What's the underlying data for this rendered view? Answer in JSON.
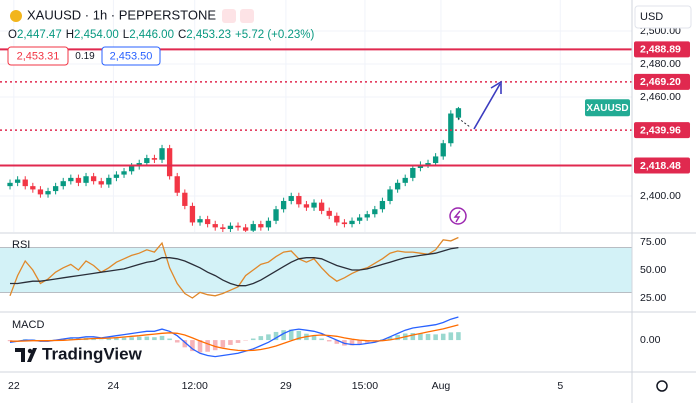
{
  "header": {
    "symbol": "XAUUSD · 1h · PEPPERSTONE",
    "ohlc": [
      {
        "label": "O",
        "value": "2,447.47"
      },
      {
        "label": "H",
        "value": "2,454.00"
      },
      {
        "label": "L",
        "value": "2,446.00"
      },
      {
        "label": "C",
        "value": "2,453.23"
      }
    ],
    "change": "+5.72 (+0.23%)",
    "bid": "2,453.31",
    "spread": "0.19",
    "ask": "2,453.50",
    "currency": "USD"
  },
  "logo": "TradingView",
  "chart_data": [
    {
      "type": "candlestick",
      "price_tag": "XAUUSD",
      "up_color": "#089981",
      "down_color": "#f23645",
      "grid": true,
      "open": [
        2406,
        2408,
        2410,
        2406,
        2404,
        2401,
        2403,
        2406,
        2409,
        2411,
        2408,
        2412,
        2409,
        2407,
        2411,
        2413,
        2415,
        2418,
        2420,
        2423,
        2422,
        2429,
        2412,
        2402,
        2394,
        2384,
        2386,
        2383,
        2381,
        2380,
        2382,
        2381,
        2379,
        2383,
        2381,
        2385,
        2392,
        2397,
        2400,
        2395,
        2393,
        2396,
        2391,
        2388,
        2384,
        2383,
        2385,
        2387,
        2389,
        2392,
        2397,
        2404,
        2408,
        2411,
        2417,
        2419,
        2420,
        2424,
        2432,
        2447.47
      ],
      "high": [
        2410,
        2412,
        2412,
        2408,
        2406,
        2405,
        2408,
        2411,
        2413,
        2413,
        2414,
        2414,
        2411,
        2413,
        2415,
        2417,
        2420,
        2422,
        2425,
        2425,
        2431,
        2431,
        2414,
        2404,
        2396,
        2388,
        2388,
        2385,
        2383,
        2384,
        2384,
        2383,
        2385,
        2385,
        2387,
        2394,
        2399,
        2402,
        2402,
        2397,
        2398,
        2398,
        2393,
        2390,
        2386,
        2387,
        2389,
        2391,
        2394,
        2399,
        2406,
        2410,
        2413,
        2419,
        2421,
        2422,
        2426,
        2434,
        2452,
        2454
      ],
      "low": [
        2404,
        2406,
        2404,
        2402,
        2399,
        2399,
        2401,
        2404,
        2407,
        2406,
        2406,
        2407,
        2405,
        2405,
        2409,
        2411,
        2413,
        2416,
        2418,
        2420,
        2420,
        2410,
        2400,
        2392,
        2382,
        2382,
        2381,
        2379,
        2378,
        2378,
        2379,
        2377,
        2377,
        2379,
        2379,
        2383,
        2390,
        2395,
        2393,
        2391,
        2391,
        2389,
        2386,
        2382,
        2381,
        2381,
        2383,
        2385,
        2387,
        2390,
        2395,
        2402,
        2406,
        2409,
        2415,
        2417,
        2418,
        2422,
        2430,
        2446
      ],
      "close": [
        2408,
        2410,
        2406,
        2404,
        2401,
        2403,
        2406,
        2409,
        2411,
        2408,
        2412,
        2409,
        2407,
        2411,
        2413,
        2415,
        2418,
        2420,
        2423,
        2422,
        2429,
        2412,
        2402,
        2394,
        2384,
        2386,
        2383,
        2381,
        2380,
        2382,
        2381,
        2379,
        2383,
        2381,
        2385,
        2392,
        2397,
        2400,
        2395,
        2393,
        2396,
        2391,
        2388,
        2384,
        2383,
        2385,
        2387,
        2389,
        2392,
        2397,
        2404,
        2408,
        2411,
        2417,
        2419,
        2420,
        2424,
        2432,
        2450,
        2453.23
      ],
      "ylim": [
        2378.2,
        2518.8
      ],
      "yticks": [
        {
          "value": 2400,
          "label": "2,400.00"
        },
        {
          "value": 2460,
          "label": "2,460.00"
        },
        {
          "value": 2480,
          "label": "2,480.00"
        },
        {
          "value": 2500,
          "label": "2,500.00"
        }
      ],
      "xlim": [
        -1.32,
        81.84
      ],
      "xticks": [
        {
          "value": 0.5,
          "label": "22"
        },
        {
          "value": 13.6,
          "label": "24"
        },
        {
          "value": 24.3,
          "label": "12:00"
        },
        {
          "value": 36.3,
          "label": "29"
        },
        {
          "value": 46.7,
          "label": "15:00"
        },
        {
          "value": 56.7,
          "label": "Aug"
        },
        {
          "value": 72.4,
          "label": "5"
        }
      ],
      "level_color": "#e0294f",
      "levels": [
        {
          "value": 2488.89,
          "label": "2,488.89",
          "style": "solid"
        },
        {
          "value": 2469.2,
          "label": "2,469.20",
          "style": "dotted"
        },
        {
          "value": 2439.96,
          "label": "2,439.96",
          "style": "dotted"
        },
        {
          "value": 2418.48,
          "label": "2,418.48",
          "style": "solid"
        }
      ]
    },
    {
      "type": "line",
      "title": "RSI",
      "ylim": [
        14.3,
        81.25
      ],
      "yticks": [
        {
          "value": 75,
          "label": "75.00"
        },
        {
          "value": 50,
          "label": "50.00"
        },
        {
          "value": 25,
          "label": "25.00"
        }
      ],
      "band": [
        30,
        70
      ],
      "band_color": "#d3f2f7",
      "series": [
        {
          "color": "#e0882a",
          "values": [
            27,
            45,
            58,
            50,
            38,
            42,
            48,
            52,
            55,
            50,
            58,
            54,
            48,
            52,
            57,
            60,
            63,
            65,
            68,
            66,
            74,
            52,
            38,
            29,
            25,
            30,
            28,
            27,
            29,
            32,
            35,
            45,
            50,
            55,
            57,
            62,
            66,
            67,
            60,
            57,
            60,
            52,
            45,
            40,
            43,
            47,
            50,
            52,
            56,
            60,
            65,
            67,
            66,
            66,
            65,
            64,
            68,
            77,
            76,
            79
          ]
        },
        {
          "color": "#2a2e39",
          "values": [
            38,
            38,
            39,
            40,
            40,
            41,
            42,
            43,
            44,
            45,
            46,
            47,
            48,
            49,
            50,
            51,
            53,
            55,
            57,
            58,
            61,
            61,
            60,
            58,
            55,
            52,
            48,
            45,
            41,
            38,
            36,
            36,
            38,
            41,
            45,
            49,
            53,
            57,
            60,
            61,
            61,
            60,
            57,
            54,
            52,
            50,
            50,
            51,
            53,
            55,
            57,
            59,
            61,
            62,
            63,
            64,
            65,
            67,
            69,
            70
          ]
        }
      ]
    },
    {
      "type": "line",
      "title": "MACD",
      "ylim": [
        -13.6,
        11.4
      ],
      "yticks": [
        {
          "value": 0,
          "label": "0.00"
        }
      ],
      "series": [
        {
          "kind": "histogram",
          "color": "#9ad8cf",
          "negative_color": "#f6b3b8",
          "values": [
            -0.5,
            0,
            0.4,
            0.3,
            -0.2,
            -0.2,
            0.2,
            0.6,
            0.9,
            0.7,
            1.0,
            0.8,
            0.2,
            0.6,
            0.9,
            1.1,
            1.3,
            1.5,
            1.6,
            1.3,
            1.9,
            0.7,
            -1.1,
            -3.3,
            -5,
            -5.6,
            -5.3,
            -4.6,
            -3.3,
            -2.2,
            -1.3,
            -0.2,
            0.7,
            1.8,
            2.6,
            3.7,
            4.5,
            4.8,
            4.2,
            2.9,
            1.9,
            0.7,
            -0.6,
            -1.7,
            -2.5,
            -2.4,
            -2,
            -1.2,
            -0.6,
            0.3,
            1.4,
            2.3,
            3.0,
            3.2,
            3.0,
            2.8,
            2.6,
            2.9,
            3.5,
            3.6
          ]
        },
        {
          "color": "#2962ff",
          "values": [
            -1,
            -0.5,
            0,
            0,
            -0.5,
            -0.5,
            0,
            0.5,
            1,
            1,
            1.5,
            1.5,
            1,
            1.5,
            2,
            2.5,
            3,
            3.5,
            4,
            4,
            5,
            4,
            2,
            -1,
            -4,
            -6,
            -7,
            -7.5,
            -7,
            -6.5,
            -6,
            -5,
            -4,
            -2.5,
            -1,
            1,
            3,
            4.5,
            5,
            4.5,
            4,
            3,
            1.5,
            0,
            -1.5,
            -2,
            -2,
            -1.5,
            -1,
            0,
            1.5,
            3,
            4.5,
            5.5,
            6,
            6.5,
            7,
            8,
            9.5,
            10.5
          ]
        },
        {
          "color": "#ff6d00",
          "values": [
            -0.5,
            -0.5,
            -0.4,
            -0.3,
            -0.3,
            -0.3,
            -0.2,
            -0.1,
            0.1,
            0.3,
            0.5,
            0.7,
            0.8,
            0.9,
            1.1,
            1.4,
            1.7,
            2,
            2.4,
            2.7,
            3.1,
            3.3,
            3.1,
            2.3,
            1,
            -0.4,
            -1.7,
            -2.9,
            -3.7,
            -4.3,
            -4.7,
            -4.8,
            -4.7,
            -4.3,
            -3.6,
            -2.7,
            -1.5,
            -0.3,
            0.8,
            1.6,
            2.1,
            2.3,
            2.1,
            1.7,
            1.0,
            0.4,
            0,
            -0.3,
            -0.4,
            -0.3,
            0.1,
            0.7,
            1.5,
            2.3,
            3.0,
            3.7,
            4.4,
            5.1,
            6.0,
            6.9
          ]
        }
      ]
    }
  ]
}
